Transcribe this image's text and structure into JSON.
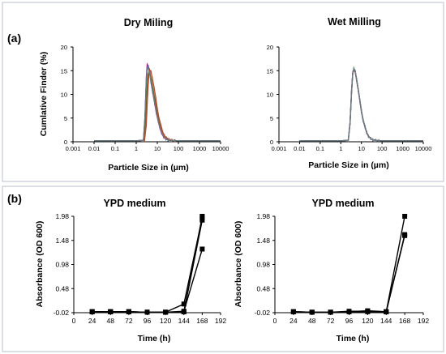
{
  "panel_a_label": "(a)",
  "panel_b_label": "(b)",
  "colors": {
    "curve_a": "#d81b7e",
    "curve_b": "#7a3fc4",
    "curve_c": "#2e7d32",
    "curve_d": "#d84315",
    "curve_e": "#607d8b",
    "growth": "#000000",
    "frame": "#b8c2cc"
  },
  "chart_data": [
    {
      "id": "dry",
      "type": "line",
      "title": "Dry Miling",
      "xlabel": "Particle Size in  (µm)",
      "ylabel": "Cumlative Finder  (%)",
      "xscale": "log",
      "xlim": [
        0.001,
        10000
      ],
      "ylim": [
        0,
        20
      ],
      "xticks": [
        0.001,
        0.01,
        0.1,
        1,
        10,
        100,
        1000,
        10000
      ],
      "xtick_labels": [
        "0.001",
        "0.01",
        "0.1",
        "1",
        "10",
        "100",
        "1000",
        "10000"
      ],
      "yticks": [
        0,
        5,
        10,
        15,
        20
      ],
      "ytick_labels": [
        "0",
        "5",
        "10",
        "15",
        "20"
      ],
      "grid": false,
      "series": [
        {
          "x": [
            0.01,
            1,
            2.2,
            2.6,
            3.0,
            3.3,
            3.7,
            4.3,
            5,
            6,
            7.5,
            9,
            11,
            13,
            16,
            20,
            25,
            32,
            45,
            65,
            10000
          ],
          "y": [
            0.2,
            0.2,
            0.3,
            5.5,
            13.5,
            16.3,
            15.8,
            14.5,
            12.5,
            10.5,
            8,
            6,
            4.3,
            3,
            1.8,
            1.0,
            0.6,
            0.4,
            0.3,
            0.2,
            0.2
          ]
        },
        {
          "x": [
            0.01,
            1,
            2.2,
            2.6,
            3.0,
            3.3,
            3.7,
            4.3,
            5,
            6,
            7.5,
            9,
            11,
            13,
            16,
            20,
            25,
            32,
            45,
            65,
            10000
          ],
          "y": [
            0.2,
            0.2,
            0.3,
            5,
            12.5,
            15.5,
            16.0,
            15.0,
            13,
            11,
            8.5,
            6.3,
            4.5,
            3.1,
            1.9,
            1.1,
            0.6,
            0.4,
            0.3,
            0.2,
            0.2
          ]
        },
        {
          "x": [
            0.01,
            1,
            2.3,
            2.8,
            3.2,
            3.6,
            4.0,
            4.6,
            5.4,
            6.5,
            8,
            9.5,
            11.5,
            14,
            17,
            21,
            26,
            33,
            45,
            65,
            10000
          ],
          "y": [
            0.2,
            0.2,
            0.3,
            4,
            10.5,
            14,
            14.8,
            14.2,
            12.8,
            10.8,
            8.5,
            6.5,
            4.6,
            3.2,
            2.0,
            1.2,
            0.7,
            0.4,
            0.3,
            0.2,
            0.2
          ]
        },
        {
          "x": [
            0.01,
            1,
            2.5,
            3.0,
            3.5,
            3.9,
            4.3,
            5.0,
            5.8,
            7,
            8.5,
            10,
            12,
            15,
            18,
            22,
            28,
            36,
            50,
            70,
            10000
          ],
          "y": [
            0.2,
            0.2,
            0.3,
            3.5,
            10,
            13.8,
            15.2,
            14.8,
            13.5,
            11.5,
            9.2,
            7,
            5,
            3.4,
            2.1,
            1.3,
            0.8,
            0.5,
            0.3,
            0.2,
            0.2
          ]
        },
        {
          "x": [
            0.01,
            1,
            2.2,
            2.6,
            3.0,
            3.4,
            3.8,
            4.4,
            5.1,
            6.1,
            7.6,
            9.2,
            11,
            13.5,
            16.5,
            20.5,
            25.5,
            32,
            45,
            65,
            10000
          ],
          "y": [
            0.2,
            0.2,
            0.3,
            5.2,
            12.8,
            15.6,
            15.5,
            14.3,
            12.6,
            10.6,
            8.2,
            6.1,
            4.4,
            3.0,
            1.9,
            1.1,
            0.6,
            0.4,
            0.3,
            0.2,
            0.2
          ]
        }
      ]
    },
    {
      "id": "wet",
      "type": "line",
      "title": "Wet Milling",
      "xlabel": "Particle Size in  (µm)",
      "ylabel": "",
      "xscale": "log",
      "xlim": [
        0.001,
        10000
      ],
      "ylim": [
        0,
        20
      ],
      "xticks": [
        0.001,
        0.01,
        0.1,
        1,
        10,
        100,
        1000,
        10000
      ],
      "xtick_labels": [
        "0.001",
        "0.01",
        "0.1",
        "1",
        "10",
        "100",
        "1000",
        "10000"
      ],
      "yticks": [
        0,
        5,
        10,
        15,
        20
      ],
      "ytick_labels": [
        "0",
        "5",
        "10",
        "15",
        "20"
      ],
      "grid": false,
      "series": [
        {
          "x": [
            0.01,
            1,
            2.3,
            2.8,
            3.3,
            3.8,
            4.3,
            5,
            5.8,
            7,
            8.5,
            10,
            12,
            15,
            18,
            22,
            28,
            36,
            50,
            70,
            10000
          ],
          "y": [
            0.2,
            0.2,
            0.3,
            4,
            10.5,
            14.5,
            15.3,
            14.8,
            13.2,
            11,
            8.6,
            6.5,
            4.6,
            3.1,
            2.0,
            1.2,
            0.7,
            0.4,
            0.3,
            0.2,
            0.2
          ]
        },
        {
          "x": [
            0.01,
            1,
            2.3,
            2.8,
            3.3,
            3.8,
            4.3,
            5,
            5.8,
            7,
            8.5,
            10,
            12,
            15,
            18,
            22,
            28,
            36,
            50,
            70,
            10000
          ],
          "y": [
            0.2,
            0.2,
            0.3,
            4.2,
            10.8,
            14.7,
            15.2,
            14.6,
            13,
            10.8,
            8.4,
            6.3,
            4.5,
            3.0,
            1.9,
            1.1,
            0.7,
            0.4,
            0.3,
            0.2,
            0.2
          ]
        },
        {
          "x": [
            0.01,
            1,
            2.3,
            2.8,
            3.3,
            3.8,
            4.3,
            5,
            5.8,
            7,
            8.5,
            10,
            12,
            15,
            18,
            22,
            28,
            36,
            50,
            70,
            10000
          ],
          "y": [
            0.2,
            0.2,
            0.3,
            3.8,
            10.2,
            14.3,
            15.5,
            14.9,
            13.3,
            11.1,
            8.7,
            6.6,
            4.7,
            3.2,
            2.0,
            1.2,
            0.7,
            0.4,
            0.3,
            0.2,
            0.2
          ]
        },
        {
          "x": [
            0.01,
            1,
            2.3,
            2.8,
            3.3,
            3.8,
            4.3,
            5,
            5.8,
            7,
            8.5,
            10,
            12,
            15,
            18,
            22,
            28,
            36,
            50,
            70,
            10000
          ],
          "y": [
            0.2,
            0.2,
            0.3,
            4.1,
            10.6,
            14.6,
            15.1,
            14.7,
            13.1,
            10.9,
            8.5,
            6.4,
            4.6,
            3.1,
            1.9,
            1.2,
            0.7,
            0.4,
            0.3,
            0.2,
            0.2
          ]
        },
        {
          "x": [
            0.01,
            1,
            2.3,
            2.8,
            3.3,
            3.8,
            4.3,
            5,
            5.8,
            7,
            8.5,
            10,
            12,
            15,
            18,
            22,
            28,
            36,
            50,
            70,
            10000
          ],
          "y": [
            0.2,
            0.2,
            0.3,
            3.9,
            10.4,
            14.4,
            15.4,
            14.8,
            13.2,
            11.0,
            8.6,
            6.5,
            4.6,
            3.1,
            2.0,
            1.2,
            0.7,
            0.4,
            0.3,
            0.2,
            0.2
          ]
        }
      ]
    },
    {
      "id": "ypd1",
      "type": "line",
      "title": "YPD medium",
      "xlabel": "Time (h)",
      "ylabel": "Absorbance (OD 600)",
      "xlim": [
        0,
        192
      ],
      "ylim": [
        -0.02,
        1.98
      ],
      "xticks": [
        0,
        24,
        48,
        72,
        96,
        120,
        144,
        168,
        192
      ],
      "xtick_labels": [
        "0",
        "24",
        "48",
        "72",
        "96",
        "120",
        "144",
        "168",
        "192"
      ],
      "yticks": [
        -0.02,
        0.48,
        0.98,
        1.48,
        1.98
      ],
      "ytick_labels": [
        "-0.02",
        "0.48",
        "0.98",
        "1.48",
        "1.98"
      ],
      "grid": false,
      "markers": true,
      "series": [
        {
          "x": [
            24,
            48,
            72,
            96,
            120,
            144,
            168
          ],
          "y": [
            0.0,
            0.0,
            0.0,
            -0.01,
            -0.01,
            0.0,
            1.98
          ]
        },
        {
          "x": [
            24,
            48,
            72,
            96,
            120,
            144,
            168
          ],
          "y": [
            0.0,
            0.0,
            0.0,
            -0.01,
            -0.01,
            0.0,
            1.9
          ]
        },
        {
          "x": [
            24,
            48,
            72,
            96,
            120,
            144,
            168
          ],
          "y": [
            0.0,
            0.0,
            0.0,
            -0.01,
            -0.01,
            0.16,
            1.95
          ]
        },
        {
          "x": [
            24,
            48,
            72,
            96,
            120,
            144,
            168
          ],
          "y": [
            0.0,
            0.0,
            0.0,
            -0.01,
            -0.01,
            0.01,
            1.3
          ]
        }
      ]
    },
    {
      "id": "ypd2",
      "type": "line",
      "title": "YPD medium",
      "xlabel": "Time (h)",
      "ylabel": "Absorbance (OD 600)",
      "xlim": [
        0,
        192
      ],
      "ylim": [
        -0.02,
        1.98
      ],
      "xticks": [
        0,
        24,
        48,
        72,
        96,
        120,
        144,
        168,
        192
      ],
      "xtick_labels": [
        "0",
        "24",
        "48",
        "72",
        "96",
        "120",
        "144",
        "168",
        "192"
      ],
      "yticks": [
        -0.02,
        0.48,
        0.98,
        1.48,
        1.98
      ],
      "ytick_labels": [
        "-0.02",
        "0.48",
        "0.98",
        "1.48",
        "1.98"
      ],
      "grid": false,
      "markers": true,
      "series": [
        {
          "x": [
            24,
            48,
            72,
            96,
            120,
            144,
            168
          ],
          "y": [
            0.0,
            -0.01,
            -0.01,
            0.0,
            0.02,
            0.0,
            1.98
          ]
        },
        {
          "x": [
            24,
            48,
            72,
            96,
            120,
            144,
            168
          ],
          "y": [
            0.0,
            -0.01,
            -0.01,
            0.0,
            0.0,
            0.0,
            1.6
          ]
        },
        {
          "x": [
            24,
            48,
            72,
            96,
            120,
            144,
            168
          ],
          "y": [
            0.0,
            -0.01,
            -0.01,
            0.01,
            0.01,
            0.0,
            1.58
          ]
        }
      ]
    }
  ]
}
